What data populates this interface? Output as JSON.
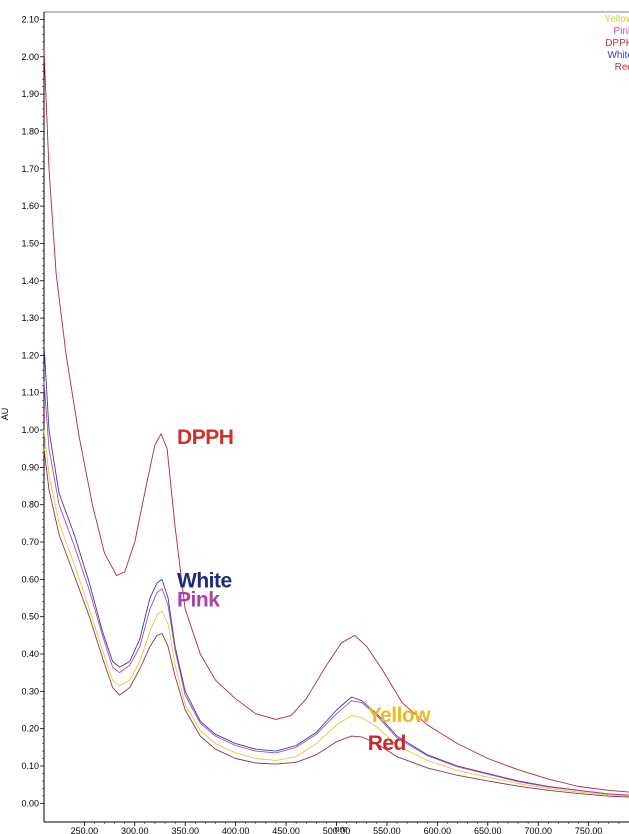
{
  "chart_data": {
    "type": "line",
    "xlabel": "nm",
    "ylabel": "AU",
    "xlim": [
      210,
      790
    ],
    "ylim": [
      -0.05,
      2.12
    ],
    "x_ticks": [
      "250.00",
      "300.00",
      "350.00",
      "400.00",
      "450.00",
      "500.00",
      "550.00",
      "600.00",
      "650.00",
      "700.00",
      "750.00"
    ],
    "y_ticks": [
      "0.00",
      "0.10",
      "0.20",
      "0.30",
      "0.40",
      "0.50",
      "0.60",
      "0.70",
      "0.80",
      "0.90",
      "1.00",
      "1.10",
      "1.20",
      "1.30",
      "1.40",
      "1.50",
      "1.60",
      "1.70",
      "1.80",
      "1.90",
      "2.00",
      "2.10"
    ],
    "legend": [
      "Yellow",
      "Pink",
      "DPPH",
      "White",
      "Red"
    ],
    "legend_position": "top-right",
    "series": [
      {
        "name": "DPPH",
        "color": "#b02a3a",
        "points": [
          [
            210,
            2.02
          ],
          [
            215,
            1.7
          ],
          [
            222,
            1.42
          ],
          [
            232,
            1.2
          ],
          [
            245,
            0.98
          ],
          [
            258,
            0.8
          ],
          [
            270,
            0.67
          ],
          [
            282,
            0.61
          ],
          [
            290,
            0.62
          ],
          [
            300,
            0.7
          ],
          [
            312,
            0.86
          ],
          [
            320,
            0.96
          ],
          [
            326,
            0.99
          ],
          [
            332,
            0.95
          ],
          [
            340,
            0.74
          ],
          [
            350,
            0.52
          ],
          [
            365,
            0.4
          ],
          [
            380,
            0.33
          ],
          [
            400,
            0.28
          ],
          [
            420,
            0.24
          ],
          [
            440,
            0.225
          ],
          [
            455,
            0.235
          ],
          [
            470,
            0.28
          ],
          [
            490,
            0.37
          ],
          [
            505,
            0.43
          ],
          [
            518,
            0.45
          ],
          [
            530,
            0.42
          ],
          [
            545,
            0.36
          ],
          [
            565,
            0.27
          ],
          [
            590,
            0.21
          ],
          [
            620,
            0.16
          ],
          [
            650,
            0.12
          ],
          [
            680,
            0.09
          ],
          [
            710,
            0.065
          ],
          [
            740,
            0.045
          ],
          [
            770,
            0.035
          ],
          [
            790,
            0.03
          ]
        ]
      },
      {
        "name": "White",
        "color": "#3a3ab0",
        "points": [
          [
            210,
            1.23
          ],
          [
            215,
            1.0
          ],
          [
            225,
            0.83
          ],
          [
            240,
            0.72
          ],
          [
            255,
            0.59
          ],
          [
            268,
            0.46
          ],
          [
            278,
            0.38
          ],
          [
            285,
            0.365
          ],
          [
            295,
            0.38
          ],
          [
            305,
            0.44
          ],
          [
            315,
            0.55
          ],
          [
            322,
            0.59
          ],
          [
            327,
            0.6
          ],
          [
            333,
            0.55
          ],
          [
            340,
            0.42
          ],
          [
            350,
            0.3
          ],
          [
            365,
            0.22
          ],
          [
            380,
            0.185
          ],
          [
            400,
            0.16
          ],
          [
            420,
            0.145
          ],
          [
            440,
            0.14
          ],
          [
            460,
            0.155
          ],
          [
            480,
            0.19
          ],
          [
            500,
            0.25
          ],
          [
            515,
            0.285
          ],
          [
            525,
            0.275
          ],
          [
            540,
            0.24
          ],
          [
            560,
            0.18
          ],
          [
            590,
            0.13
          ],
          [
            620,
            0.1
          ],
          [
            650,
            0.08
          ],
          [
            680,
            0.06
          ],
          [
            710,
            0.045
          ],
          [
            740,
            0.035
          ],
          [
            770,
            0.025
          ],
          [
            790,
            0.022
          ]
        ]
      },
      {
        "name": "Pink",
        "color": "#b04aa8",
        "points": [
          [
            210,
            1.13
          ],
          [
            215,
            0.95
          ],
          [
            225,
            0.8
          ],
          [
            240,
            0.69
          ],
          [
            255,
            0.57
          ],
          [
            268,
            0.45
          ],
          [
            278,
            0.365
          ],
          [
            285,
            0.35
          ],
          [
            295,
            0.37
          ],
          [
            305,
            0.42
          ],
          [
            315,
            0.52
          ],
          [
            322,
            0.565
          ],
          [
            327,
            0.575
          ],
          [
            333,
            0.53
          ],
          [
            340,
            0.41
          ],
          [
            350,
            0.29
          ],
          [
            365,
            0.215
          ],
          [
            380,
            0.18
          ],
          [
            400,
            0.155
          ],
          [
            420,
            0.14
          ],
          [
            440,
            0.135
          ],
          [
            460,
            0.15
          ],
          [
            480,
            0.185
          ],
          [
            500,
            0.24
          ],
          [
            515,
            0.275
          ],
          [
            525,
            0.27
          ],
          [
            540,
            0.235
          ],
          [
            560,
            0.175
          ],
          [
            590,
            0.128
          ],
          [
            620,
            0.098
          ],
          [
            650,
            0.078
          ],
          [
            680,
            0.058
          ],
          [
            710,
            0.044
          ],
          [
            740,
            0.034
          ],
          [
            770,
            0.025
          ],
          [
            790,
            0.022
          ]
        ]
      },
      {
        "name": "Yellow",
        "color": "#d8cf3a",
        "points": [
          [
            210,
            1.0
          ],
          [
            215,
            0.88
          ],
          [
            225,
            0.75
          ],
          [
            240,
            0.64
          ],
          [
            255,
            0.52
          ],
          [
            268,
            0.41
          ],
          [
            278,
            0.33
          ],
          [
            285,
            0.315
          ],
          [
            295,
            0.33
          ],
          [
            305,
            0.38
          ],
          [
            315,
            0.46
          ],
          [
            322,
            0.505
          ],
          [
            327,
            0.515
          ],
          [
            333,
            0.48
          ],
          [
            340,
            0.37
          ],
          [
            350,
            0.265
          ],
          [
            365,
            0.195
          ],
          [
            380,
            0.16
          ],
          [
            400,
            0.135
          ],
          [
            420,
            0.12
          ],
          [
            440,
            0.115
          ],
          [
            460,
            0.125
          ],
          [
            480,
            0.16
          ],
          [
            500,
            0.21
          ],
          [
            515,
            0.235
          ],
          [
            525,
            0.23
          ],
          [
            540,
            0.205
          ],
          [
            560,
            0.155
          ],
          [
            590,
            0.115
          ],
          [
            620,
            0.088
          ],
          [
            650,
            0.07
          ],
          [
            680,
            0.053
          ],
          [
            710,
            0.04
          ],
          [
            740,
            0.03
          ],
          [
            770,
            0.022
          ],
          [
            790,
            0.02
          ]
        ]
      },
      {
        "name": "Red",
        "color": "#9a2f4f",
        "points": [
          [
            210,
            0.95
          ],
          [
            215,
            0.84
          ],
          [
            225,
            0.72
          ],
          [
            240,
            0.61
          ],
          [
            255,
            0.5
          ],
          [
            268,
            0.39
          ],
          [
            278,
            0.31
          ],
          [
            285,
            0.29
          ],
          [
            295,
            0.31
          ],
          [
            305,
            0.36
          ],
          [
            315,
            0.42
          ],
          [
            322,
            0.45
          ],
          [
            327,
            0.455
          ],
          [
            333,
            0.42
          ],
          [
            340,
            0.34
          ],
          [
            350,
            0.25
          ],
          [
            365,
            0.18
          ],
          [
            380,
            0.145
          ],
          [
            400,
            0.12
          ],
          [
            420,
            0.108
          ],
          [
            440,
            0.105
          ],
          [
            460,
            0.11
          ],
          [
            480,
            0.13
          ],
          [
            500,
            0.165
          ],
          [
            515,
            0.18
          ],
          [
            525,
            0.178
          ],
          [
            540,
            0.16
          ],
          [
            560,
            0.125
          ],
          [
            590,
            0.095
          ],
          [
            620,
            0.075
          ],
          [
            650,
            0.06
          ],
          [
            680,
            0.046
          ],
          [
            710,
            0.035
          ],
          [
            740,
            0.026
          ],
          [
            770,
            0.019
          ],
          [
            790,
            0.017
          ]
        ]
      }
    ],
    "annotations": [
      {
        "text": "DPPH",
        "color": "#d0302a",
        "x": 330,
        "y": 0.99
      },
      {
        "text": "White",
        "color": "#1f2a7a",
        "x": 330,
        "y": 0.6
      },
      {
        "text": "Pink",
        "color": "#a843a8",
        "x": 330,
        "y": 0.565
      },
      {
        "text": "Yellow",
        "color": "#f2b824",
        "x": 525,
        "y": 0.205
      },
      {
        "text": "Red",
        "color": "#c8292e",
        "x": 525,
        "y": 0.175
      }
    ]
  }
}
